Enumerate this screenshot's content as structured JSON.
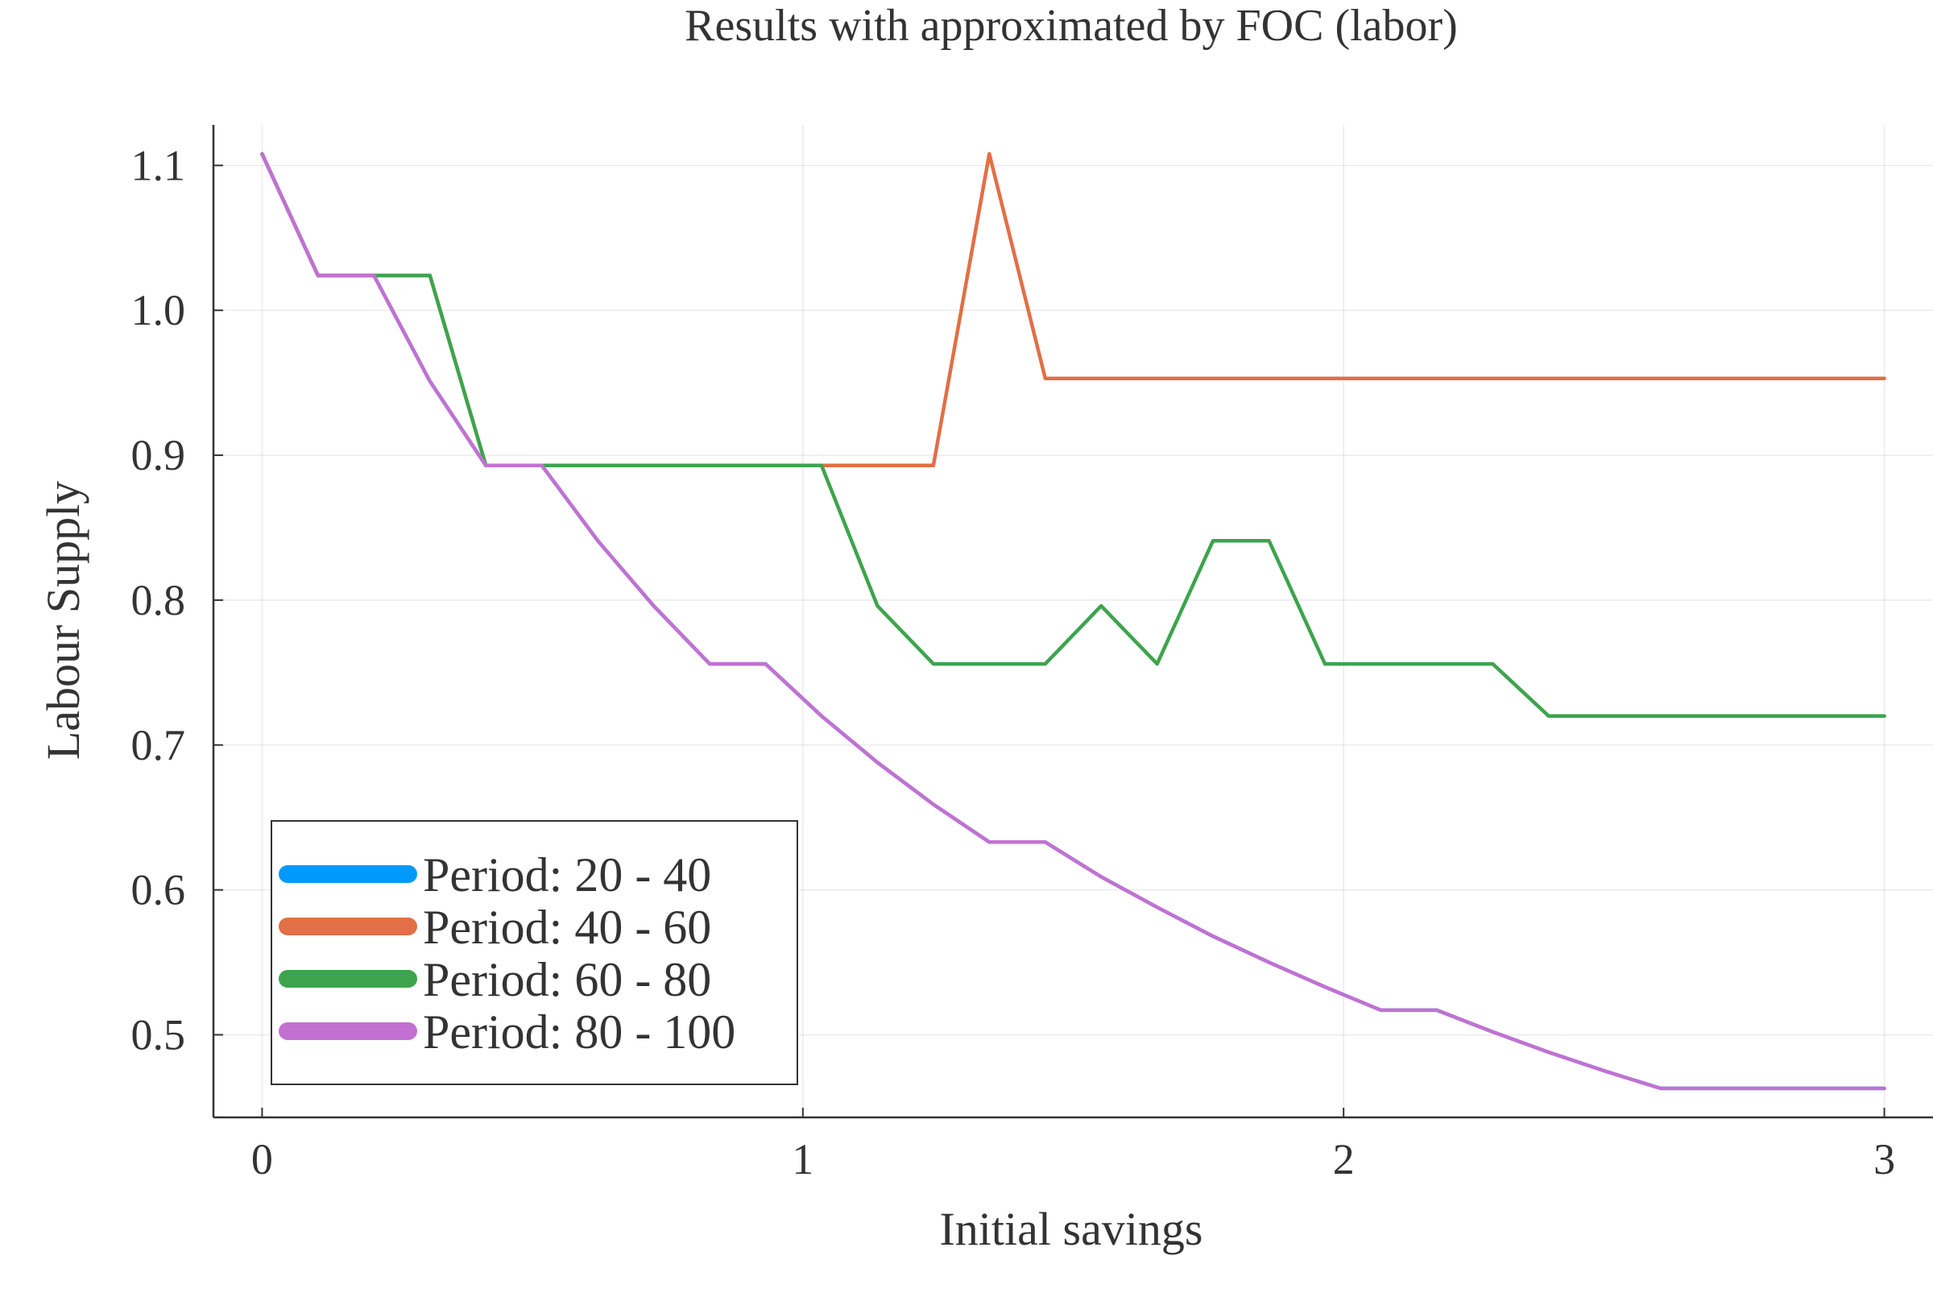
{
  "chart_data": {
    "type": "line",
    "title": "Results with approximated by FOC (labor)",
    "xlabel": "Initial savings",
    "ylabel": "Labour Supply",
    "xlim": [
      -0.09,
      3.09
    ],
    "ylim": [
      0.443,
      1.128
    ],
    "xticks": [
      0,
      1,
      2,
      3
    ],
    "xtick_labels": [
      "0",
      "1",
      "2",
      "3"
    ],
    "yticks": [
      0.5,
      0.6,
      0.7,
      0.8,
      0.9,
      1.0,
      1.1
    ],
    "ytick_labels": [
      "0.5",
      "0.6",
      "0.7",
      "0.8",
      "0.9",
      "1.0",
      "1.1"
    ],
    "grid": true,
    "legend_position": "bottom-left",
    "x": [
      0.0,
      0.1034,
      0.2069,
      0.3103,
      0.4138,
      0.5172,
      0.6207,
      0.7241,
      0.8276,
      0.931,
      1.0345,
      1.1379,
      1.2414,
      1.3448,
      1.4483,
      1.5517,
      1.6552,
      1.7586,
      1.8621,
      1.9655,
      2.069,
      2.1724,
      2.2759,
      2.3793,
      2.4828,
      2.5862,
      2.6897,
      2.7931,
      2.8966,
      3.0
    ],
    "series": [
      {
        "name": "Period: 20 - 40",
        "color": "#009AFA",
        "values": [
          1.108,
          1.024,
          1.024,
          0.951,
          0.893,
          0.893,
          0.841,
          0.796,
          0.756,
          0.756,
          0.72,
          0.688,
          0.659,
          0.633,
          0.633,
          0.609,
          0.588,
          0.568,
          0.55,
          0.533,
          0.517,
          0.517,
          0.502,
          0.488,
          0.475,
          0.463,
          0.463,
          0.463,
          0.463,
          0.463
        ]
      },
      {
        "name": "Period: 40 - 60",
        "color": "#E26F46",
        "values": [
          1.108,
          1.024,
          1.024,
          1.024,
          0.893,
          0.893,
          0.893,
          0.893,
          0.893,
          0.893,
          0.893,
          0.893,
          0.893,
          1.108,
          0.953,
          0.953,
          0.953,
          0.953,
          0.953,
          0.953,
          0.953,
          0.953,
          0.953,
          0.953,
          0.953,
          0.953,
          0.953,
          0.953,
          0.953,
          0.953
        ]
      },
      {
        "name": "Period: 60 - 80",
        "color": "#3DA44D",
        "values": [
          1.108,
          1.024,
          1.024,
          1.024,
          0.893,
          0.893,
          0.893,
          0.893,
          0.893,
          0.893,
          0.893,
          0.796,
          0.756,
          0.756,
          0.756,
          0.796,
          0.756,
          0.841,
          0.841,
          0.756,
          0.756,
          0.756,
          0.756,
          0.72,
          0.72,
          0.72,
          0.72,
          0.72,
          0.72,
          0.72
        ]
      },
      {
        "name": "Period: 80 - 100",
        "color": "#C271D2",
        "values": [
          1.108,
          1.024,
          1.024,
          0.951,
          0.893,
          0.893,
          0.841,
          0.796,
          0.756,
          0.756,
          0.72,
          0.688,
          0.659,
          0.633,
          0.633,
          0.609,
          0.588,
          0.568,
          0.55,
          0.533,
          0.517,
          0.517,
          0.502,
          0.488,
          0.475,
          0.463,
          0.463,
          0.463,
          0.463,
          0.463
        ]
      }
    ]
  }
}
